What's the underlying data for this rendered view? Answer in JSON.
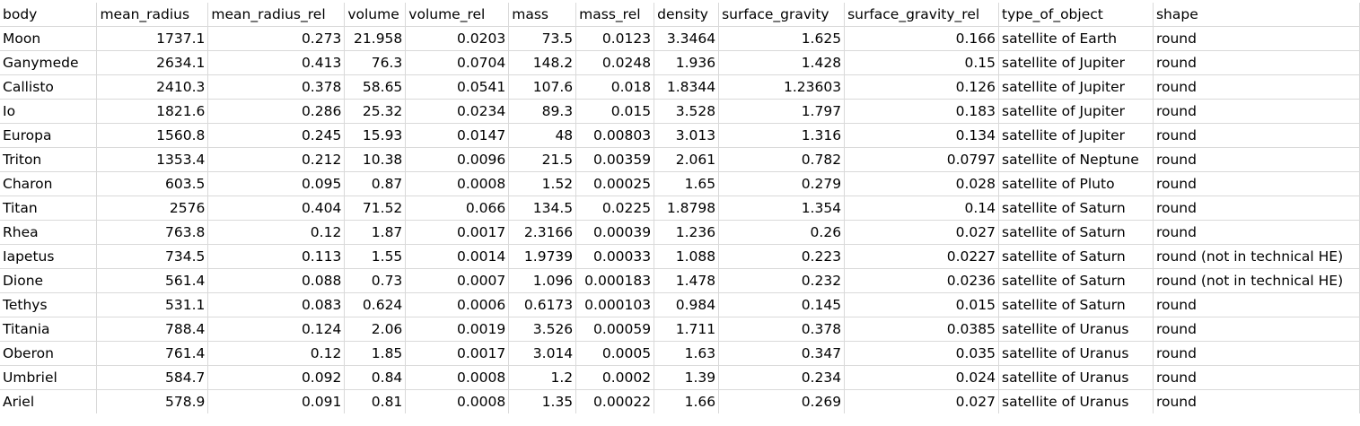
{
  "sheet": {
    "headers": [
      "body",
      "mean_radius",
      "mean_radius_rel",
      "volume",
      "volume_rel",
      "mass",
      "mass_rel",
      "density",
      "surface_gravity",
      "surface_gravity_rel",
      "type_of_object",
      "shape"
    ],
    "rows": [
      [
        "Moon",
        "1737.1",
        "0.273",
        "21.958",
        "0.0203",
        "73.5",
        "0.0123",
        "3.3464",
        "1.625",
        "0.166",
        "satellite of Earth",
        "round"
      ],
      [
        "Ganymede",
        "2634.1",
        "0.413",
        "76.3",
        "0.0704",
        "148.2",
        "0.0248",
        "1.936",
        "1.428",
        "0.15",
        "satellite of Jupiter",
        "round"
      ],
      [
        "Callisto",
        "2410.3",
        "0.378",
        "58.65",
        "0.0541",
        "107.6",
        "0.018",
        "1.8344",
        "1.23603",
        "0.126",
        "satellite of Jupiter",
        "round"
      ],
      [
        "Io",
        "1821.6",
        "0.286",
        "25.32",
        "0.0234",
        "89.3",
        "0.015",
        "3.528",
        "1.797",
        "0.183",
        "satellite of Jupiter",
        "round"
      ],
      [
        "Europa",
        "1560.8",
        "0.245",
        "15.93",
        "0.0147",
        "48",
        "0.00803",
        "3.013",
        "1.316",
        "0.134",
        "satellite of Jupiter",
        "round"
      ],
      [
        "Triton",
        "1353.4",
        "0.212",
        "10.38",
        "0.0096",
        "21.5",
        "0.00359",
        "2.061",
        "0.782",
        "0.0797",
        "satellite of Neptune",
        "round"
      ],
      [
        "Charon",
        "603.5",
        "0.095",
        "0.87",
        "0.0008",
        "1.52",
        "0.00025",
        "1.65",
        "0.279",
        "0.028",
        "satellite of Pluto",
        "round"
      ],
      [
        "Titan",
        "2576",
        "0.404",
        "71.52",
        "0.066",
        "134.5",
        "0.0225",
        "1.8798",
        "1.354",
        "0.14",
        "satellite of Saturn",
        "round"
      ],
      [
        "Rhea",
        "763.8",
        "0.12",
        "1.87",
        "0.0017",
        "2.3166",
        "0.00039",
        "1.236",
        "0.26",
        "0.027",
        "satellite of Saturn",
        "round"
      ],
      [
        "Iapetus",
        "734.5",
        "0.113",
        "1.55",
        "0.0014",
        "1.9739",
        "0.00033",
        "1.088",
        "0.223",
        "0.0227",
        "satellite of Saturn",
        "round (not in technical HE)"
      ],
      [
        "Dione",
        "561.4",
        "0.088",
        "0.73",
        "0.0007",
        "1.096",
        "0.000183",
        "1.478",
        "0.232",
        "0.0236",
        "satellite of Saturn",
        "round (not in technical HE)"
      ],
      [
        "Tethys",
        "531.1",
        "0.083",
        "0.624",
        "0.0006",
        "0.6173",
        "0.000103",
        "0.984",
        "0.145",
        "0.015",
        "satellite of Saturn",
        "round"
      ],
      [
        "Titania",
        "788.4",
        "0.124",
        "2.06",
        "0.0019",
        "3.526",
        "0.00059",
        "1.711",
        "0.378",
        "0.0385",
        "satellite of Uranus",
        "round"
      ],
      [
        "Oberon",
        "761.4",
        "0.12",
        "1.85",
        "0.0017",
        "3.014",
        "0.0005",
        "1.63",
        "0.347",
        "0.035",
        "satellite of Uranus",
        "round"
      ],
      [
        "Umbriel",
        "584.7",
        "0.092",
        "0.84",
        "0.0008",
        "1.2",
        "0.0002",
        "1.39",
        "0.234",
        "0.024",
        "satellite of Uranus",
        "round"
      ],
      [
        "Ariel",
        "578.9",
        "0.091",
        "0.81",
        "0.0008",
        "1.35",
        "0.00022",
        "1.66",
        "0.269",
        "0.027",
        "satellite of Uranus",
        "round"
      ]
    ]
  }
}
